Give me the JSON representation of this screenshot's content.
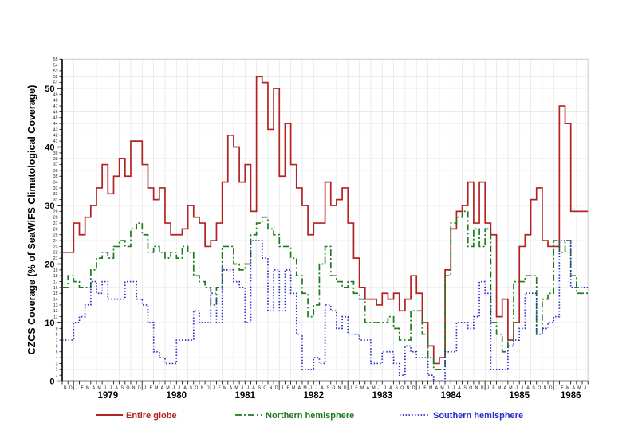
{
  "page": {
    "background": "#ffffff",
    "title": ""
  },
  "chart_data": {
    "type": "line",
    "subtype": "step-staircase-monthly",
    "title": "",
    "ylabel": "CZCS Coverage (% of SeaWiFS Climatological Coverage)",
    "xlabel": "",
    "ylim": [
      0,
      55
    ],
    "y_minor_tick_every": 1,
    "y_major_tick_every": 10,
    "grid": {
      "shown": true,
      "color": "#e4e4e4",
      "x_every_months": 2,
      "y_every_units": 2
    },
    "legend_position": "bottom",
    "x_axis": {
      "lead_months": [
        "N",
        "D"
      ],
      "lead_year_implied": "1978",
      "years": [
        {
          "label": "1979",
          "months": "JFMAMJJASOND"
        },
        {
          "label": "1980",
          "months": "JFMAMJJASOND"
        },
        {
          "label": "1981",
          "months": "JFMAMJJASOND"
        },
        {
          "label": "1982",
          "months": "JFMAMJJASOND"
        },
        {
          "label": "1983",
          "months": "JFMAMJJASOND"
        },
        {
          "label": "1984",
          "months": "JFMAMJJASOND"
        },
        {
          "label": "1985",
          "months": "JFMAMJJASOND"
        },
        {
          "label": "1986",
          "months": "JFMAMJ"
        }
      ]
    },
    "series": [
      {
        "name": "Entire globe",
        "color": "#b22222",
        "line_style": "solid",
        "values": [
          22,
          22,
          27,
          25,
          28,
          30,
          33,
          37,
          32,
          35,
          38,
          35,
          41,
          41,
          37,
          33,
          31,
          33,
          27,
          25,
          25,
          26,
          30,
          28,
          27,
          23,
          24,
          27,
          34,
          42,
          40,
          34,
          37,
          29,
          52,
          51,
          43,
          50,
          35,
          44,
          37,
          33,
          30,
          25,
          27,
          27,
          34,
          30,
          31,
          33,
          27,
          21,
          16,
          14,
          14,
          13,
          15,
          14,
          15,
          12,
          14,
          18,
          15,
          10,
          6,
          3,
          4,
          19,
          26,
          29,
          30,
          34,
          27,
          34,
          27,
          25,
          11,
          14,
          7,
          10,
          23,
          25,
          31,
          33,
          24,
          23,
          23,
          47,
          44,
          29,
          29,
          29
        ]
      },
      {
        "name": "Northern hemisphere",
        "color": "#1e7a1e",
        "line_style": "dash-dot",
        "values": [
          16,
          18,
          17,
          16,
          16,
          19,
          21,
          22,
          21,
          23,
          24,
          23,
          26,
          27,
          25,
          22,
          23,
          22,
          21,
          22,
          21,
          23,
          22,
          18,
          17,
          16,
          13,
          16,
          23,
          23,
          20,
          19,
          20,
          25,
          27,
          28,
          26,
          25,
          23,
          23,
          21,
          18,
          15,
          11,
          13,
          20,
          23,
          18,
          17,
          16,
          17,
          15,
          14,
          10,
          10,
          10,
          10,
          11,
          9,
          7,
          7,
          12,
          12,
          8,
          4,
          2,
          2,
          18,
          27,
          28,
          29,
          23,
          26,
          23,
          26,
          10,
          8,
          5,
          7,
          17,
          17,
          18,
          18,
          8,
          14,
          15,
          24,
          22,
          24,
          18,
          15,
          15
        ]
      },
      {
        "name": "Southern hemisphere",
        "color": "#2929cc",
        "line_style": "dotted",
        "values": [
          7,
          7,
          10,
          11,
          13,
          17,
          15,
          17,
          14,
          14,
          14,
          17,
          17,
          14,
          13,
          10,
          5,
          4,
          3,
          3,
          7,
          7,
          7,
          12,
          10,
          10,
          15,
          10,
          19,
          19,
          17,
          16,
          10,
          24,
          24,
          21,
          12,
          19,
          12,
          19,
          15,
          8,
          2,
          2,
          4,
          3,
          13,
          12,
          9,
          11,
          8,
          8,
          7,
          7,
          3,
          3,
          5,
          5,
          3,
          1,
          6,
          5,
          4,
          4,
          1,
          0,
          0,
          5,
          5,
          10,
          10,
          9,
          11,
          17,
          15,
          2,
          2,
          2,
          6,
          7,
          9,
          15,
          15,
          8,
          9,
          10,
          11,
          24,
          24,
          16,
          16,
          16
        ]
      }
    ]
  }
}
